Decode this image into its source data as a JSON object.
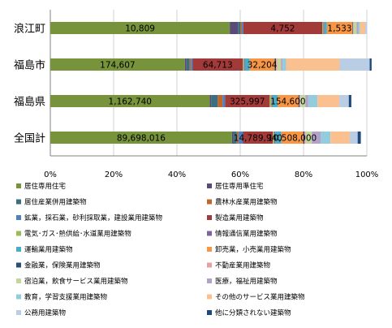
{
  "chart_data": {
    "type": "bar",
    "orientation": "horizontal",
    "stacked": "percent",
    "categories": [
      "浪江町",
      "福島市",
      "福島県",
      "全国計"
    ],
    "xlim": [
      0,
      100
    ],
    "x_ticks": [
      "0%",
      "20%",
      "40%",
      "60%",
      "80%",
      "100%"
    ],
    "grid": true,
    "legend_position": "bottom",
    "series": [
      {
        "name": "居住専用住宅",
        "color": "#77933c",
        "values": [
          56.7,
          42.5,
          50.4,
          57.4
        ],
        "labels": [
          "10,809",
          "174,607",
          "1,162,740",
          "89,698,016"
        ]
      },
      {
        "name": "居住専用準住宅",
        "color": "#5a4a78",
        "values": [
          2.6,
          0.5,
          0.4,
          0.3
        ],
        "labels": [
          "",
          "",
          "",
          ""
        ]
      },
      {
        "name": "居住産業併用建築物",
        "color": "#3c6e80",
        "values": [
          0.8,
          1.0,
          2.1,
          1.2
        ],
        "labels": [
          "",
          "",
          "",
          ""
        ]
      },
      {
        "name": "農林水産業用建築物",
        "color": "#c0682a",
        "values": [
          0.4,
          0.4,
          1.5,
          0.5
        ],
        "labels": [
          "",
          "",
          "",
          ""
        ]
      },
      {
        "name": "鉱業，採石業，砂利採取業，建設業用建築物",
        "color": "#4f81bd",
        "values": [
          0.5,
          0.6,
          0.8,
          1.5
        ],
        "labels": [
          "",
          "",
          "",
          ""
        ]
      },
      {
        "name": "製造業用建築物",
        "color": "#a33a3a",
        "values": [
          24.9,
          15.8,
          14.1,
          9.4
        ],
        "labels": [
          "4,752",
          "64,713",
          "325,997",
          "14,789,940"
        ]
      },
      {
        "name": "電気･ガス･熱供給･水道業用建築物",
        "color": "#9bbb59",
        "values": [
          0.4,
          0.4,
          0.6,
          0.4
        ],
        "labels": [
          "",
          "",
          "",
          ""
        ]
      },
      {
        "name": "情報通信業用建築物",
        "color": "#8064a2",
        "values": [
          0.3,
          0.3,
          0.3,
          0.4
        ],
        "labels": [
          "",
          "",
          "",
          ""
        ]
      },
      {
        "name": "運輸業用建築物",
        "color": "#4bacc6",
        "values": [
          0.8,
          1.5,
          1.6,
          1.9
        ],
        "labels": [
          "",
          "",
          "",
          ""
        ]
      },
      {
        "name": "卸売業，小売業用建築物",
        "color": "#f79646",
        "values": [
          8.0,
          7.9,
          6.6,
          6.9
        ],
        "labels": [
          "1,533",
          "32,204",
          "154,600",
          "10,508,000"
        ]
      },
      {
        "name": "金融業，保険業用建築物",
        "color": "#2c4d75",
        "values": [
          0.2,
          0.4,
          0.3,
          0.4
        ],
        "labels": [
          "",
          "",
          "",
          ""
        ]
      },
      {
        "name": "不動産業用建築物",
        "color": "#e6a0a0",
        "values": [
          0.2,
          0.4,
          0.3,
          0.4
        ],
        "labels": [
          "",
          "",
          "",
          ""
        ]
      },
      {
        "name": "宿泊業，飲食サービス業用建築物",
        "color": "#c3d69b",
        "values": [
          1.0,
          1.2,
          1.6,
          1.9
        ],
        "labels": [
          "",
          "",
          "",
          ""
        ]
      },
      {
        "name": "医療，福祉用建築物",
        "color": "#b3a2c7",
        "values": [
          0.5,
          0.5,
          0.9,
          2.8
        ],
        "labels": [
          "",
          "",
          "",
          ""
        ]
      },
      {
        "name": "教育，学習支援業用建築物",
        "color": "#93cddd",
        "values": [
          0.5,
          1.1,
          2.9,
          3.1
        ],
        "labels": [
          "",
          "",
          "",
          ""
        ]
      },
      {
        "name": "その他のサービス業用建築物",
        "color": "#fac090",
        "values": [
          1.7,
          16.9,
          6.9,
          6.1
        ],
        "labels": [
          "",
          "",
          "",
          ""
        ]
      },
      {
        "name": "公務用建築物",
        "color": "#b9cde5",
        "values": [
          0.5,
          9.5,
          3.0,
          2.5
        ],
        "labels": [
          "",
          "",
          "",
          ""
        ]
      },
      {
        "name": "他に分類されない建築物",
        "color": "#1f497d",
        "values": [
          0.0,
          0.6,
          0.8,
          1.0
        ],
        "labels": [
          "",
          "",
          "",
          ""
        ]
      }
    ]
  }
}
